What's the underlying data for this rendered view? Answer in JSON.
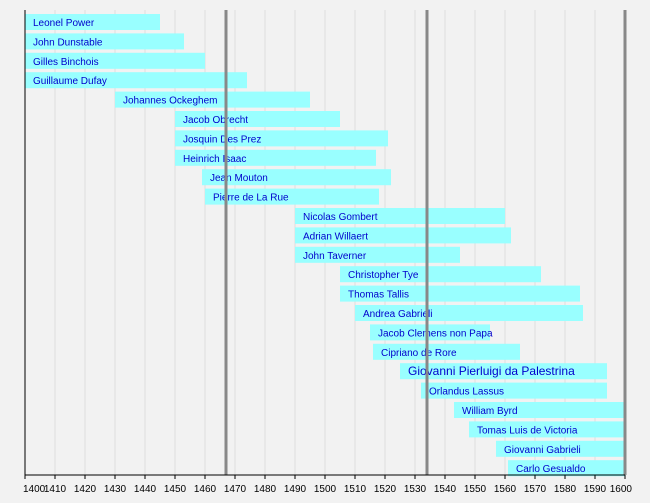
{
  "chart_data": {
    "type": "bar",
    "orientation": "horizontal-timeline",
    "title": "",
    "xlabel": "",
    "ylabel": "",
    "xlim": [
      1400,
      1600
    ],
    "x_ticks": [
      1400,
      1410,
      1420,
      1430,
      1440,
      1450,
      1460,
      1470,
      1480,
      1490,
      1500,
      1510,
      1520,
      1530,
      1540,
      1550,
      1560,
      1570,
      1580,
      1590,
      1600
    ],
    "grid": true,
    "era_markers": [
      1467,
      1534,
      1600
    ],
    "colors": {
      "bar": "#99ffff",
      "label": "#0000cc",
      "era_line": "#888888",
      "background": "#f2f2f2"
    },
    "series": [
      {
        "name": "Leonel Power",
        "start": 1400,
        "end": 1445
      },
      {
        "name": "John Dunstable",
        "start": 1400,
        "end": 1453
      },
      {
        "name": "Gilles Binchois",
        "start": 1400,
        "end": 1460
      },
      {
        "name": "Guillaume Dufay",
        "start": 1400,
        "end": 1474
      },
      {
        "name": "Johannes Ockeghem",
        "start": 1430,
        "end": 1495
      },
      {
        "name": "Jacob Obrecht",
        "start": 1450,
        "end": 1505
      },
      {
        "name": "Josquin Des Prez",
        "start": 1450,
        "end": 1521
      },
      {
        "name": "Heinrich Isaac",
        "start": 1450,
        "end": 1517
      },
      {
        "name": "Jean Mouton",
        "start": 1459,
        "end": 1522
      },
      {
        "name": "Pierre de La Rue",
        "start": 1460,
        "end": 1518
      },
      {
        "name": "Nicolas Gombert",
        "start": 1490,
        "end": 1560
      },
      {
        "name": "Adrian Willaert",
        "start": 1490,
        "end": 1562
      },
      {
        "name": "John Taverner",
        "start": 1490,
        "end": 1545
      },
      {
        "name": "Christopher Tye",
        "start": 1505,
        "end": 1572
      },
      {
        "name": "Thomas Tallis",
        "start": 1505,
        "end": 1585
      },
      {
        "name": "Andrea Gabrieli",
        "start": 1510,
        "end": 1586
      },
      {
        "name": "Jacob Clemens non Papa",
        "start": 1515,
        "end": 1555
      },
      {
        "name": "Cipriano de Rore",
        "start": 1516,
        "end": 1565
      },
      {
        "name": "Giovanni Pierluigi da Palestrina",
        "start": 1525,
        "end": 1594,
        "emphasis": true
      },
      {
        "name": "Orlandus Lassus",
        "start": 1532,
        "end": 1594
      },
      {
        "name": "William Byrd",
        "start": 1543,
        "end": 1600
      },
      {
        "name": "Tomas Luis de Victoria",
        "start": 1548,
        "end": 1600
      },
      {
        "name": "Giovanni Gabrieli",
        "start": 1557,
        "end": 1600
      },
      {
        "name": "Carlo Gesualdo",
        "start": 1561,
        "end": 1600
      }
    ]
  }
}
